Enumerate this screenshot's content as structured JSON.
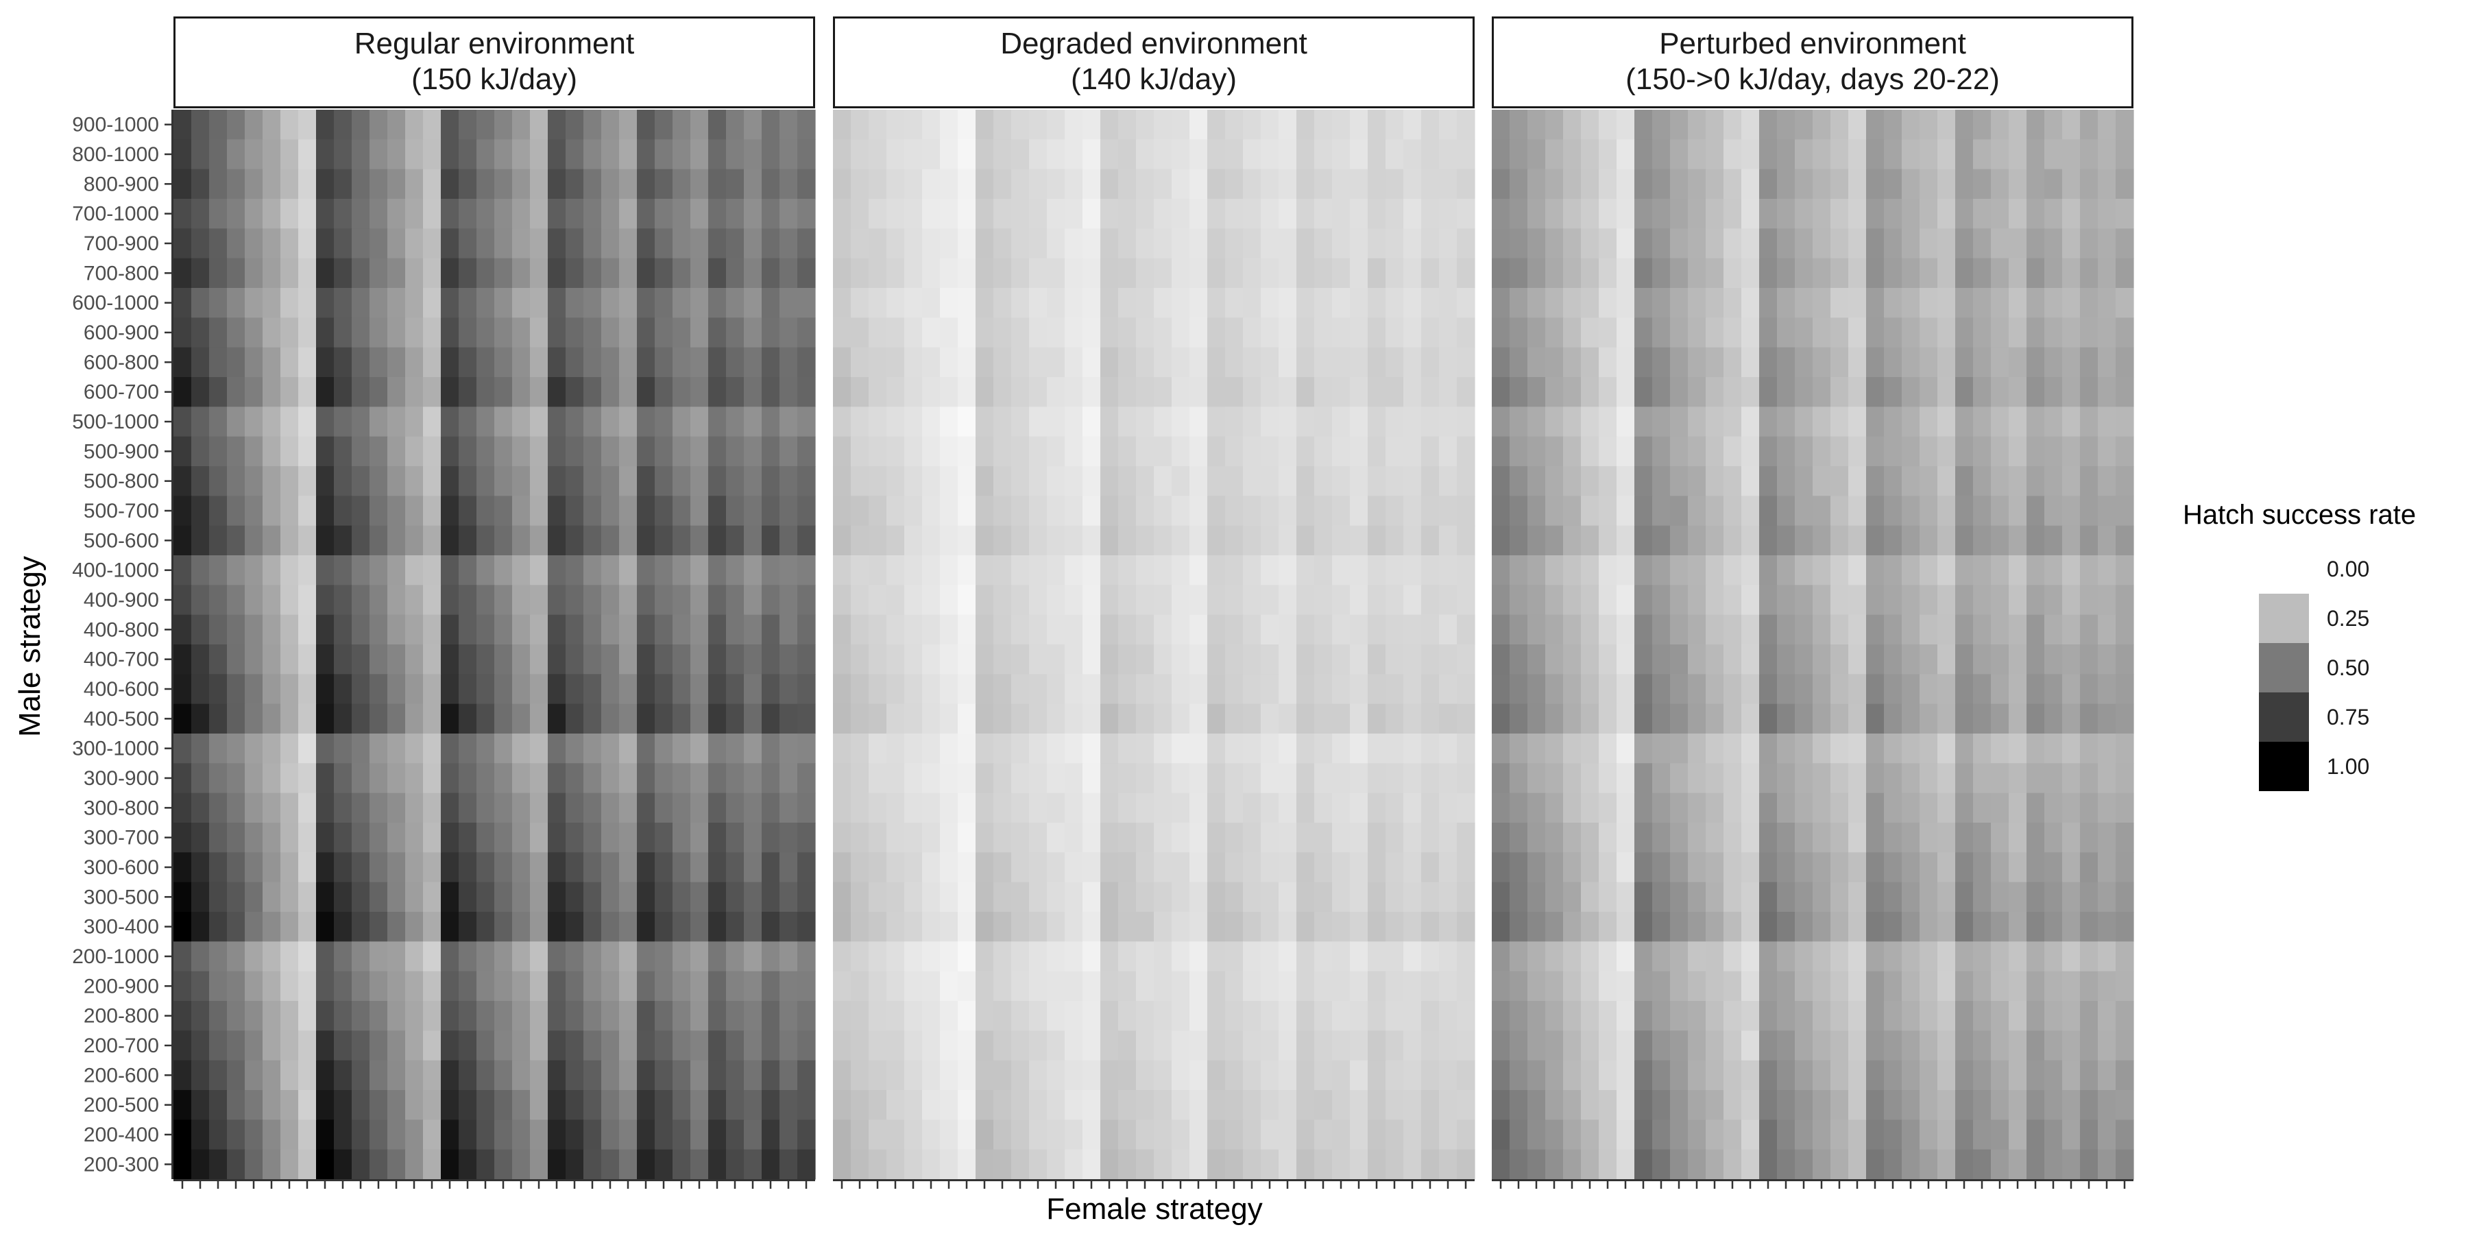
{
  "chart_data": {
    "type": "heatmap",
    "panels": [
      {
        "title_line1": "Regular environment",
        "title_line2": "(150 kJ/day)",
        "intensity": 1.0
      },
      {
        "title_line1": "Degraded environment",
        "title_line2": "(140 kJ/day)",
        "intensity": 0.28
      },
      {
        "title_line1": "Perturbed environment",
        "title_line2": "(150->0 kJ/day, days 20-22)",
        "intensity": 0.6
      }
    ],
    "y_categories": [
      "900-1000",
      "800-1000",
      "800-900",
      "700-1000",
      "700-900",
      "700-800",
      "600-1000",
      "600-900",
      "600-800",
      "600-700",
      "500-1000",
      "500-900",
      "500-800",
      "500-700",
      "500-600",
      "400-1000",
      "400-900",
      "400-800",
      "400-700",
      "400-600",
      "400-500",
      "300-1000",
      "300-900",
      "300-800",
      "300-700",
      "300-600",
      "300-500",
      "300-400",
      "200-1000",
      "200-900",
      "200-800",
      "200-700",
      "200-600",
      "200-500",
      "200-400",
      "200-300"
    ],
    "x_count": 36,
    "xlabel": "Female strategy",
    "ylabel": "Male strategy",
    "legend": {
      "title": "Hatch success rate",
      "entries": [
        "0.00",
        "0.25",
        "0.50",
        "0.75",
        "1.00"
      ],
      "colors": [
        "#ffffff",
        "#bdbdbd",
        "#7a7a7a",
        "#3d3d3d",
        "#000000"
      ]
    },
    "value_range": [
      0,
      1
    ],
    "color_low": "#ffffff",
    "color_high": "#000000"
  }
}
